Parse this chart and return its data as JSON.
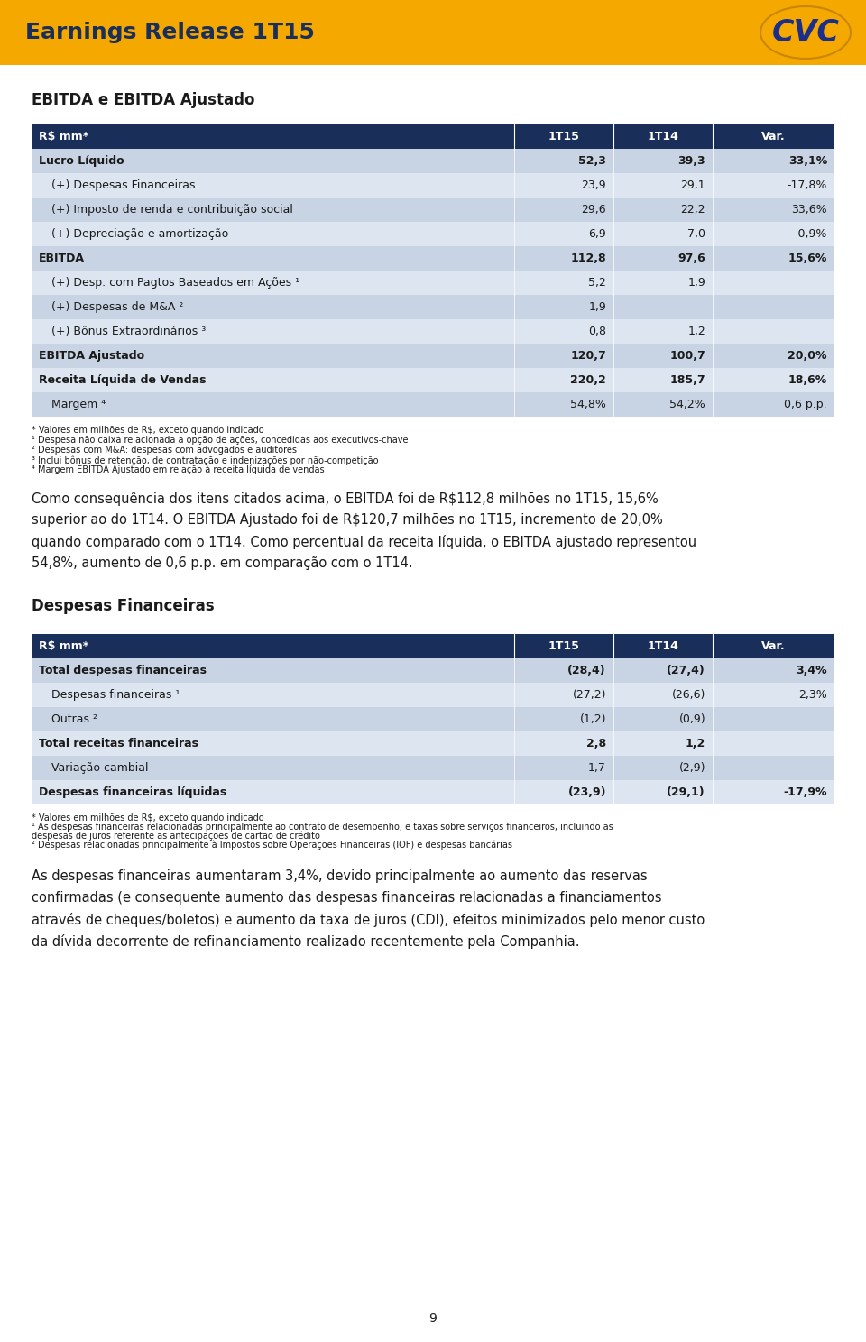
{
  "header_bg": "#F5A800",
  "header_text": "Earnings Release 1T15",
  "header_text_color": "#1a2e5a",
  "page_bg": "#ffffff",
  "table1_title": "EBITDA e EBITDA Ajustado",
  "table1_header": [
    "R$ mm*",
    "1T15",
    "1T14",
    "Var."
  ],
  "table1_header_bg": "#1a2e5a",
  "table1_row_alt1": "#c8d4e3",
  "table1_row_alt2": "#dce5f0",
  "table1_rows": [
    {
      "label": "Lucro Líquido",
      "v1": "52,3",
      "v2": "39,3",
      "var": "33,1%",
      "bold": true,
      "indent": 0
    },
    {
      "label": "(+) Despesas Financeiras",
      "v1": "23,9",
      "v2": "29,1",
      "var": "-17,8%",
      "bold": false,
      "indent": 1
    },
    {
      "label": "(+) Imposto de renda e contribuição social",
      "v1": "29,6",
      "v2": "22,2",
      "var": "33,6%",
      "bold": false,
      "indent": 1
    },
    {
      "label": "(+) Depreciação e amortização",
      "v1": "6,9",
      "v2": "7,0",
      "var": "-0,9%",
      "bold": false,
      "indent": 1
    },
    {
      "label": "EBITDA",
      "v1": "112,8",
      "v2": "97,6",
      "var": "15,6%",
      "bold": true,
      "indent": 0
    },
    {
      "label": "(+) Desp. com Pagtos Baseados em Ações ¹",
      "v1": "5,2",
      "v2": "1,9",
      "var": "",
      "bold": false,
      "indent": 1
    },
    {
      "label": "(+) Despesas de M&A ²",
      "v1": "1,9",
      "v2": "",
      "var": "",
      "bold": false,
      "indent": 1
    },
    {
      "label": "(+) Bônus Extraordinários ³",
      "v1": "0,8",
      "v2": "1,2",
      "var": "",
      "bold": false,
      "indent": 1
    },
    {
      "label": "EBITDA Ajustado",
      "v1": "120,7",
      "v2": "100,7",
      "var": "20,0%",
      "bold": true,
      "indent": 0
    },
    {
      "label": "Receita Líquida de Vendas",
      "v1": "220,2",
      "v2": "185,7",
      "var": "18,6%",
      "bold": true,
      "indent": 0
    },
    {
      "label": "Margem ⁴",
      "v1": "54,8%",
      "v2": "54,2%",
      "var": "0,6 p.p.",
      "bold": false,
      "indent": 1
    }
  ],
  "table1_footnotes": [
    "* Valores em milhões de R$, exceto quando indicado",
    "¹ Despesa não caixa relacionada a opção de ações, concedidas aos executivos-chave",
    "² Despesas com M&A: despesas com advogados e auditores",
    "³ Inclui bônus de retenção, de contratação e indenizações por não-competição",
    "⁴ Margem EBITDA Ajustado em relação à receita líquida de vendas"
  ],
  "paragraph1_lines": [
    "Como consequência dos itens citados acima, o EBITDA foi de R$112,8 milhões no 1T15, 15,6%",
    "superior ao do 1T14. O EBITDA Ajustado foi de R$120,7 milhões no 1T15, incremento de 20,0%",
    "quando comparado com o 1T14. Como percentual da receita líquida, o EBITDA ajustado representou",
    "54,8%, aumento de 0,6 p.p. em comparação com o 1T14."
  ],
  "table2_title": "Despesas Financeiras",
  "table2_header": [
    "R$ mm*",
    "1T15",
    "1T14",
    "Var."
  ],
  "table2_rows": [
    {
      "label": "Total despesas financeiras",
      "v1": "(28,4)",
      "v2": "(27,4)",
      "var": "3,4%",
      "bold": true
    },
    {
      "label": "Despesas financeiras ¹",
      "v1": "(27,2)",
      "v2": "(26,6)",
      "var": "2,3%",
      "bold": false
    },
    {
      "label": "Outras ²",
      "v1": "(1,2)",
      "v2": "(0,9)",
      "var": "",
      "bold": false
    },
    {
      "label": "Total receitas financeiras",
      "v1": "2,8",
      "v2": "1,2",
      "var": "",
      "bold": true
    },
    {
      "label": "Variação cambial",
      "v1": "1,7",
      "v2": "(2,9)",
      "var": "",
      "bold": false
    },
    {
      "label": "Despesas financeiras líquidas",
      "v1": "(23,9)",
      "v2": "(29,1)",
      "var": "-17,9%",
      "bold": true
    }
  ],
  "table2_footnotes": [
    "* Valores em milhões de R$, exceto quando indicado",
    "¹ As despesas financeiras relacionadas principalmente ao contrato de desempenho, e taxas sobre serviços financeiros, incluindo as",
    "despesas de juros referente as antecipações de cartão de crédito",
    "² Despesas relacionadas principalmente à Impostos sobre Operações Financeiras (IOF) e despesas bancárias"
  ],
  "paragraph2_lines": [
    "As despesas financeiras aumentaram 3,4%, devido principalmente ao aumento das reservas",
    "confirmadas (e consequente aumento das despesas financeiras relacionadas a financiamentos",
    "através de cheques/boletos) e aumento da taxa de juros (CDI), efeitos minimizados pelo menor custo",
    "da dívida decorrente de refinanciamento realizado recentemente pela Companhia."
  ],
  "page_number": "9"
}
